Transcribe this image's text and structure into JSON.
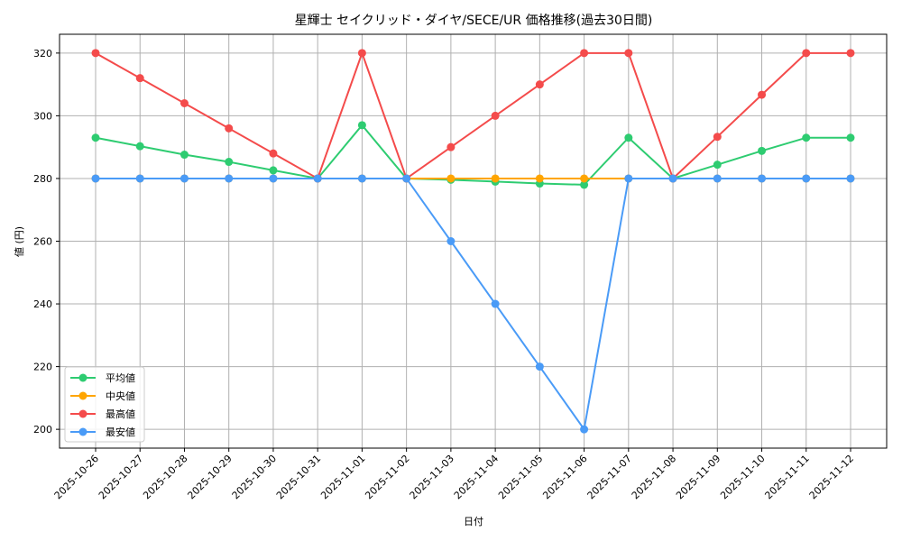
{
  "chart_data": {
    "type": "line",
    "title": "星輝士 セイクリッド・ダイヤ/SECE/UR 価格推移(過去30日間)",
    "xlabel": "日付",
    "ylabel": "値 (円)",
    "ylim": [
      194,
      326
    ],
    "yticks": [
      200,
      220,
      240,
      260,
      280,
      300,
      320
    ],
    "grid": true,
    "legend_position": "lower left",
    "categories": [
      "2025-10-26",
      "2025-10-27",
      "2025-10-28",
      "2025-10-29",
      "2025-10-30",
      "2025-10-31",
      "2025-11-01",
      "2025-11-02",
      "2025-11-03",
      "2025-11-04",
      "2025-11-05",
      "2025-11-06",
      "2025-11-07",
      "2025-11-08",
      "2025-11-09",
      "2025-11-10",
      "2025-11-11",
      "2025-11-12"
    ],
    "series": [
      {
        "name": "平均値",
        "color": "#2ecc71",
        "values": [
          293,
          290.3,
          287.6,
          285.3,
          282.6,
          280,
          297,
          280,
          279.6,
          279,
          278.4,
          278,
          293,
          280,
          284.4,
          288.8,
          293,
          293
        ]
      },
      {
        "name": "中央値",
        "color": "#ffa500",
        "values": [
          280,
          280,
          280,
          280,
          280,
          280,
          280,
          280,
          280,
          280,
          280,
          280,
          280,
          280,
          280,
          280,
          280,
          280
        ]
      },
      {
        "name": "最高値",
        "color": "#f44b4b",
        "values": [
          320,
          312,
          304,
          296,
          288,
          280,
          320,
          280,
          290,
          300,
          310,
          320,
          320,
          280,
          293.3,
          306.7,
          320,
          320
        ]
      },
      {
        "name": "最安値",
        "color": "#4a9bf7",
        "values": [
          280,
          280,
          280,
          280,
          280,
          280,
          280,
          280,
          260,
          240,
          220,
          200,
          280,
          280,
          280,
          280,
          280,
          280
        ]
      }
    ]
  }
}
